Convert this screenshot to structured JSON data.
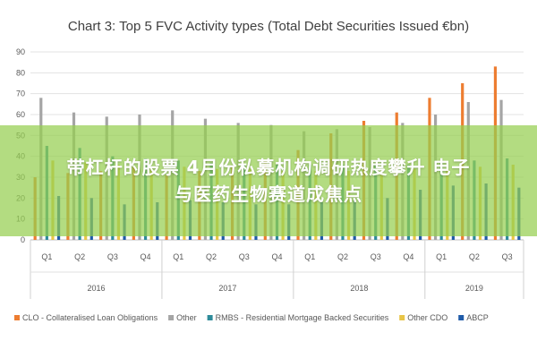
{
  "chart_data": {
    "type": "bar",
    "title": "Chart 3: Top 5 FVC Activity types (Total Debt Securities Issued €bn)",
    "xlabel": "",
    "ylabel": "",
    "ylim": [
      0,
      90
    ],
    "yticks": [
      0,
      10,
      20,
      30,
      40,
      50,
      60,
      70,
      80,
      90
    ],
    "grid": true,
    "legend_position": "bottom",
    "categories": [
      "Q1",
      "Q2",
      "Q3",
      "Q4",
      "Q1",
      "Q2",
      "Q3",
      "Q4",
      "Q1",
      "Q2",
      "Q3",
      "Q4",
      "Q1",
      "Q2",
      "Q3"
    ],
    "groups": [
      {
        "label": "2016",
        "count": 4
      },
      {
        "label": "2017",
        "count": 4
      },
      {
        "label": "2018",
        "count": 4
      },
      {
        "label": "2019",
        "count": 3
      }
    ],
    "series": [
      {
        "name": "CLO - Collateralised Loan Obligations",
        "color": "#ED7D31",
        "values": [
          30,
          32,
          33,
          35,
          31,
          33,
          35,
          38,
          43,
          51,
          57,
          61,
          68,
          75,
          83
        ]
      },
      {
        "name": "Other",
        "color": "#A5A5A5",
        "values": [
          68,
          61,
          59,
          60,
          62,
          58,
          56,
          55,
          52,
          53,
          54,
          56,
          60,
          66,
          67
        ]
      },
      {
        "name": "RMBS - Residential Mortgage Backed Securities",
        "color": "#2E8B9A",
        "values": [
          45,
          44,
          40,
          39,
          38,
          37,
          36,
          36,
          36,
          36,
          36,
          36,
          37,
          38,
          39
        ]
      },
      {
        "name": "Other CDO",
        "color": "#E8C547",
        "values": [
          38,
          37,
          36,
          35,
          35,
          34,
          34,
          33,
          33,
          33,
          34,
          34,
          34,
          35,
          36
        ]
      },
      {
        "name": "ABCP",
        "color": "#1F5BA8",
        "values": [
          21,
          20,
          17,
          18,
          19,
          18,
          17,
          17,
          18,
          19,
          20,
          24,
          26,
          27,
          25
        ]
      }
    ]
  },
  "overlay": {
    "line1": "带杠杆的股票 4月份私募机构调研热度攀升 电子",
    "line2": "与医药生物赛道成焦点"
  }
}
